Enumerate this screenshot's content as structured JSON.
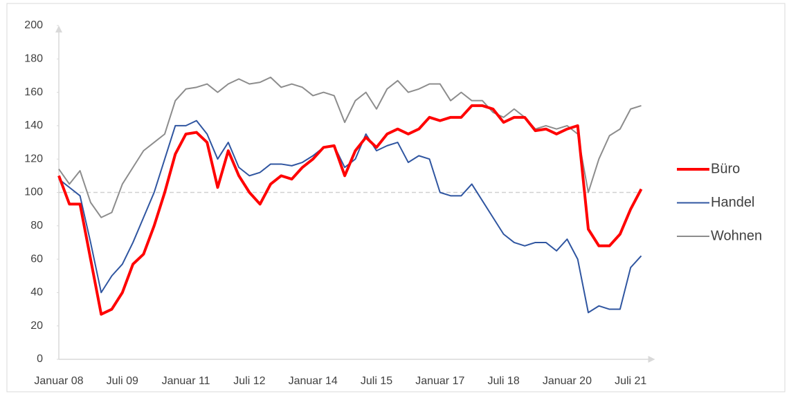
{
  "chart_data": {
    "type": "line",
    "categories": [
      "Januar 08",
      null,
      null,
      null,
      null,
      null,
      "Juli 09",
      null,
      null,
      null,
      null,
      null,
      "Januar 11",
      null,
      null,
      null,
      null,
      null,
      "Juli 12",
      null,
      null,
      null,
      null,
      null,
      "Januar 14",
      null,
      null,
      null,
      null,
      null,
      "Juli 15",
      null,
      null,
      null,
      null,
      null,
      "Januar 17",
      null,
      null,
      null,
      null,
      null,
      "Juli 18",
      null,
      null,
      null,
      null,
      null,
      "Januar 20",
      null,
      null,
      null,
      null,
      null,
      "Juli 21",
      null
    ],
    "series": [
      {
        "name": "Büro",
        "color": "#ff0000",
        "values": [
          110,
          93,
          93,
          60,
          27,
          30,
          40,
          57,
          63,
          80,
          100,
          123,
          135,
          136,
          130,
          103,
          125,
          110,
          100,
          93,
          105,
          110,
          108,
          115,
          120,
          127,
          128,
          110,
          125,
          133,
          127,
          135,
          138,
          135,
          138,
          145,
          143,
          145,
          145,
          152,
          152,
          150,
          142,
          145,
          145,
          137,
          138,
          135,
          138,
          140,
          78,
          68,
          68,
          75,
          90,
          102
        ]
      },
      {
        "name": "Handel",
        "color": "#2f55a0",
        "values": [
          108,
          103,
          98,
          70,
          40,
          50,
          57,
          70,
          85,
          100,
          120,
          140,
          140,
          143,
          135,
          120,
          130,
          115,
          110,
          112,
          117,
          117,
          116,
          118,
          122,
          127,
          128,
          115,
          120,
          135,
          125,
          128,
          130,
          118,
          122,
          120,
          100,
          98,
          98,
          105,
          95,
          85,
          75,
          70,
          68,
          70,
          70,
          65,
          72,
          60,
          28,
          32,
          30,
          30,
          55,
          62
        ]
      },
      {
        "name": "Wohnen",
        "color": "#8c8c8c",
        "values": [
          114,
          105,
          113,
          94,
          85,
          88,
          105,
          115,
          125,
          130,
          135,
          155,
          162,
          163,
          165,
          160,
          165,
          168,
          165,
          166,
          169,
          163,
          165,
          163,
          158,
          160,
          158,
          142,
          155,
          160,
          150,
          162,
          167,
          160,
          162,
          165,
          165,
          155,
          160,
          155,
          155,
          148,
          145,
          150,
          145,
          138,
          140,
          138,
          140,
          135,
          100,
          120,
          134,
          138,
          150,
          152
        ]
      }
    ],
    "ylim": [
      0,
      200
    ],
    "yticks": [
      0,
      20,
      40,
      60,
      80,
      100,
      120,
      140,
      160,
      180,
      200
    ],
    "reference_line": 100,
    "grid": false,
    "legend": "right"
  }
}
